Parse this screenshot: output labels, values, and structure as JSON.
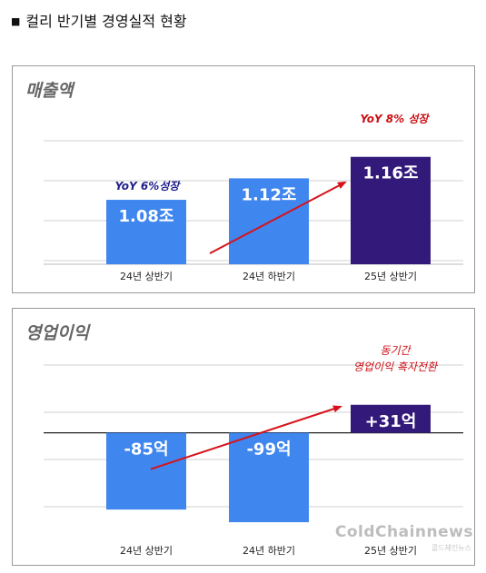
{
  "page_title": "컬리 반기별 경영실적 현황",
  "colors": {
    "blue": "#3f86ef",
    "navy": "#32197a",
    "arrow": "#d6131c",
    "annotation_red": "#cc0f14",
    "annotation_navy": "#1f1f8a"
  },
  "watermark": {
    "main": "ColdChainnews",
    "sub": "콜드체인뉴스"
  },
  "chart_data": [
    {
      "type": "bar",
      "title": "매출액",
      "categories": [
        "24년 상반기",
        "24년 하반기",
        "25년 상반기"
      ],
      "values": [
        1.08,
        1.12,
        1.16
      ],
      "data_labels": [
        "1.08조",
        "1.12조",
        "1.16조"
      ],
      "bar_colors": [
        "#3f86ef",
        "#3f86ef",
        "#32197a"
      ],
      "ylim": [
        0.96,
        1.19
      ],
      "grid": true,
      "annotations": [
        "YoY 6%성장",
        "YoY 8% 성장"
      ]
    },
    {
      "type": "bar",
      "title": "영업이익",
      "categories": [
        "24년 상반기",
        "24년 하반기",
        "25년 상반기"
      ],
      "values": [
        -85,
        -99,
        31
      ],
      "data_labels": [
        "-85억",
        "-99억",
        "+31억"
      ],
      "bar_colors": [
        "#3f86ef",
        "#3f86ef",
        "#32197a"
      ],
      "ylim": [
        -110,
        75
      ],
      "grid": true,
      "annotations": [
        "동기간",
        "영업이익 흑자전환"
      ]
    }
  ]
}
